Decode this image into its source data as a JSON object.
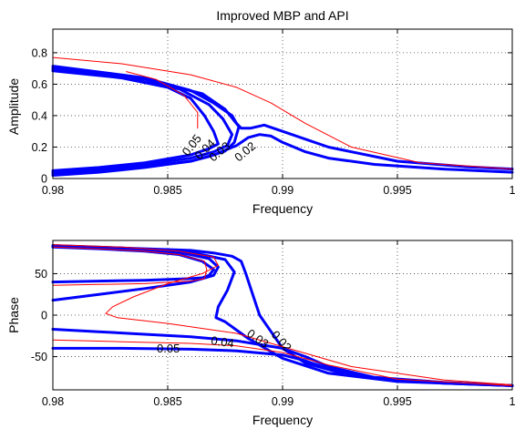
{
  "colors": {
    "thick": "#0000ff",
    "thin": "#ff0000",
    "grid": "#444444"
  },
  "chart_data": [
    {
      "type": "line",
      "title": "Improved MBP and API",
      "xlabel": "Frequency",
      "ylabel": "Amplitude",
      "xlim": [
        0.98,
        1.0
      ],
      "ylim": [
        0,
        0.95
      ],
      "xticks": [
        0.98,
        0.985,
        0.99,
        0.995,
        1.0
      ],
      "xtick_labels": [
        "0.98",
        "0.985",
        "0.99",
        "0.995",
        "1"
      ],
      "yticks": [
        0,
        0.2,
        0.4,
        0.6,
        0.8
      ],
      "ytick_labels": [
        "0",
        "0.2",
        "0.4",
        "0.6",
        "0.8"
      ],
      "grid": true,
      "series": [
        {
          "style": "thick",
          "x": [
            0.98,
            0.983,
            0.985,
            0.986,
            0.9866,
            0.987,
            0.9872,
            0.9868,
            0.986,
            0.984,
            0.982,
            0.98
          ],
          "y": [
            0.685,
            0.64,
            0.58,
            0.51,
            0.4,
            0.3,
            0.22,
            0.19,
            0.15,
            0.1,
            0.07,
            0.05
          ]
        },
        {
          "style": "thick",
          "x": [
            0.98,
            0.983,
            0.9855,
            0.9868,
            0.9874,
            0.9878,
            0.9876,
            0.987,
            0.986,
            0.984,
            0.982,
            0.98
          ],
          "y": [
            0.695,
            0.64,
            0.57,
            0.47,
            0.38,
            0.28,
            0.21,
            0.17,
            0.13,
            0.09,
            0.06,
            0.04
          ]
        },
        {
          "style": "thick",
          "x": [
            0.98,
            0.984,
            0.9865,
            0.9875,
            0.9881,
            0.9879,
            0.9875,
            0.9868,
            0.986,
            0.983,
            0.98
          ],
          "y": [
            0.705,
            0.63,
            0.54,
            0.44,
            0.33,
            0.23,
            0.175,
            0.14,
            0.11,
            0.06,
            0.03
          ]
        },
        {
          "style": "thick",
          "x": [
            0.98,
            0.984,
            0.986,
            0.987,
            0.9878,
            0.988,
            0.9882,
            0.9886,
            0.9892,
            0.99,
            0.992,
            0.995,
            0.998,
            1.0
          ],
          "y": [
            0.715,
            0.64,
            0.56,
            0.48,
            0.4,
            0.35,
            0.32,
            0.32,
            0.34,
            0.3,
            0.2,
            0.11,
            0.075,
            0.06
          ]
        },
        {
          "style": "thick",
          "x": [
            0.98,
            0.982,
            0.984,
            0.986,
            0.987,
            0.988,
            0.9885,
            0.989,
            0.9895,
            0.99,
            0.991,
            0.992,
            0.994,
            0.997,
            1.0
          ],
          "y": [
            0.02,
            0.04,
            0.07,
            0.11,
            0.15,
            0.21,
            0.26,
            0.28,
            0.27,
            0.23,
            0.17,
            0.13,
            0.09,
            0.06,
            0.04
          ]
        },
        {
          "style": "thin",
          "x": [
            0.98,
            0.983,
            0.986,
            0.988,
            0.9895,
            0.991,
            0.993,
            0.996,
            1.0
          ],
          "y": [
            0.77,
            0.73,
            0.66,
            0.58,
            0.48,
            0.35,
            0.2,
            0.1,
            0.06
          ]
        },
        {
          "style": "thin",
          "x": [
            0.9832,
            0.9845,
            0.9857,
            0.9863,
            0.9863
          ],
          "y": [
            0.68,
            0.63,
            0.53,
            0.42,
            0.32
          ]
        }
      ],
      "contour_labels": [
        "0.05",
        "0.04",
        "0.03",
        "0.02"
      ]
    },
    {
      "type": "line",
      "xlabel": "Frequency",
      "ylabel": "Phase",
      "xlim": [
        0.98,
        1.0
      ],
      "ylim": [
        -90,
        90
      ],
      "xticks": [
        0.98,
        0.985,
        0.99,
        0.995,
        1.0
      ],
      "xtick_labels": [
        "0.98",
        "0.985",
        "0.99",
        "0.995",
        "1"
      ],
      "yticks": [
        -50,
        0,
        50
      ],
      "ytick_labels": [
        "-50",
        "0",
        "50"
      ],
      "grid": true,
      "series": [
        {
          "style": "thick",
          "x": [
            0.98,
            0.982,
            0.984,
            0.9855,
            0.9865,
            0.987,
            0.9868,
            0.9865,
            0.986,
            0.984,
            0.982,
            0.98
          ],
          "y": [
            82,
            80,
            77,
            73,
            65,
            55,
            48,
            45,
            44,
            42,
            41,
            40
          ]
        },
        {
          "style": "thick",
          "x": [
            0.98,
            0.983,
            0.9855,
            0.9868,
            0.9872,
            0.987,
            0.986,
            0.984,
            0.982,
            0.98
          ],
          "y": [
            83,
            80,
            76,
            68,
            58,
            48,
            40,
            32,
            25,
            18
          ]
        },
        {
          "style": "thick",
          "x": [
            0.98,
            0.983,
            0.986,
            0.9875,
            0.9879,
            0.9876,
            0.9872,
            0.9871,
            0.9875,
            0.9885,
            0.99,
            0.992,
            0.995,
            1.0
          ],
          "y": [
            83,
            81,
            76,
            67,
            52,
            30,
            10,
            -3,
            -8,
            -28,
            -52,
            -70,
            -80,
            -85
          ]
        },
        {
          "style": "thick",
          "x": [
            0.98,
            0.983,
            0.986,
            0.987,
            0.9878,
            0.9882,
            0.9884,
            0.9887,
            0.989,
            0.9895,
            0.99,
            0.991,
            0.993,
            0.996,
            1.0
          ],
          "y": [
            84,
            81,
            78,
            75,
            71,
            65,
            50,
            25,
            0,
            -20,
            -40,
            -58,
            -73,
            -80,
            -85
          ]
        },
        {
          "style": "thick",
          "x": [
            0.98,
            0.982,
            0.984,
            0.986,
            0.988,
            0.99,
            0.991,
            0.992,
            0.994,
            0.997,
            1.0
          ],
          "y": [
            -17,
            -20,
            -23,
            -26,
            -31,
            -40,
            -50,
            -62,
            -75,
            -81,
            -85
          ]
        },
        {
          "style": "thick",
          "x": [
            0.98,
            0.983,
            0.986,
            0.988,
            0.99,
            0.991,
            0.992,
            0.994,
            0.997,
            1.0
          ],
          "y": [
            -40,
            -40,
            -41,
            -43,
            -48,
            -55,
            -65,
            -76,
            -82,
            -85
          ]
        },
        {
          "style": "thin",
          "x": [
            0.98,
            0.982,
            0.984,
            0.9855,
            0.9866,
            0.9867,
            0.9866,
            0.986,
            0.984,
            0.982,
            0.98
          ],
          "y": [
            82,
            80,
            77,
            73,
            65,
            55,
            44,
            41,
            38,
            37,
            36
          ]
        },
        {
          "style": "thin",
          "x": [
            0.98,
            0.983,
            0.9855,
            0.987,
            0.9872,
            0.9865,
            0.985,
            0.9835,
            0.9826,
            0.9823,
            0.9828,
            0.985,
            0.988,
            0.99,
            0.993,
            0.997,
            1.0
          ],
          "y": [
            85,
            82,
            77,
            70,
            60,
            50,
            38,
            22,
            10,
            2,
            -3,
            -10,
            -22,
            -38,
            -62,
            -78,
            -84
          ]
        },
        {
          "style": "thin",
          "x": [
            0.98,
            0.983,
            0.986,
            0.988,
            0.99,
            0.992,
            0.995,
            1.0
          ],
          "y": [
            -30,
            -32,
            -34,
            -37,
            -45,
            -60,
            -77,
            -85
          ]
        }
      ],
      "contour_labels": [
        "0.05",
        "0.04",
        "0.03",
        "0.02"
      ]
    }
  ]
}
